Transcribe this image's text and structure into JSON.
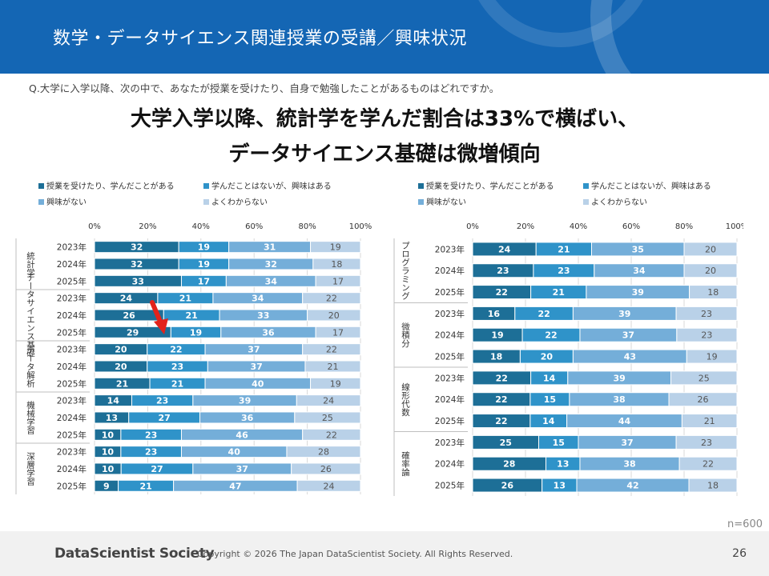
{
  "header": {
    "title": "数学・データサイエンス関連授業の受講／興味状況"
  },
  "question": "Q.大学に入学以降、次の中で、あなたが授業を受けたり、自身で勉強したことがあるものはどれですか。",
  "headline": [
    "大学入学以降、統計学を学んだ割合は33%で横ばい、",
    "データサイエンス基礎は微増傾向"
  ],
  "n_label": "n=600",
  "footer": {
    "brand": "DataScientist Society",
    "copyright": "Copyright © 2026  The Japan DataScientist Society. All Rights Reserved.",
    "page": "26"
  },
  "colors": {
    "header_bg": "#1466b4",
    "series": [
      "#1d6f97",
      "#2f93c9",
      "#74aed9",
      "#b9d1e8"
    ]
  },
  "chart_data": [
    {
      "type": "bar",
      "stacked": true,
      "orientation": "horizontal",
      "legend": [
        "授業を受けたり、学んだことがある",
        "学んだことはないが、興味はある",
        "興味がない",
        "よくわからない"
      ],
      "x_ticks": [
        "0%",
        "20%",
        "40%",
        "60%",
        "80%",
        "100%"
      ],
      "xlim": [
        0,
        100
      ],
      "groups": [
        {
          "label": "統計学",
          "rows": [
            {
              "year": "2023年",
              "values": [
                32,
                19,
                31,
                19
              ]
            },
            {
              "year": "2024年",
              "values": [
                32,
                19,
                32,
                18
              ]
            },
            {
              "year": "2025年",
              "values": [
                33,
                17,
                34,
                17
              ]
            }
          ]
        },
        {
          "label": "データサイエンス基礎",
          "rows": [
            {
              "year": "2023年",
              "values": [
                24,
                21,
                34,
                22
              ]
            },
            {
              "year": "2024年",
              "values": [
                26,
                21,
                33,
                20
              ]
            },
            {
              "year": "2025年",
              "values": [
                29,
                19,
                36,
                17
              ]
            }
          ]
        },
        {
          "label": "データ解析",
          "rows": [
            {
              "year": "2023年",
              "values": [
                20,
                22,
                37,
                22
              ]
            },
            {
              "year": "2024年",
              "values": [
                20,
                23,
                37,
                21
              ]
            },
            {
              "year": "2025年",
              "values": [
                21,
                21,
                40,
                19
              ]
            }
          ]
        },
        {
          "label": "機械学習",
          "rows": [
            {
              "year": "2023年",
              "values": [
                14,
                23,
                39,
                24
              ]
            },
            {
              "year": "2024年",
              "values": [
                13,
                27,
                36,
                25
              ]
            },
            {
              "year": "2025年",
              "values": [
                10,
                23,
                46,
                22
              ]
            }
          ]
        },
        {
          "label": "深層学習",
          "rows": [
            {
              "year": "2023年",
              "values": [
                10,
                23,
                40,
                28
              ]
            },
            {
              "year": "2024年",
              "values": [
                10,
                27,
                37,
                26
              ]
            },
            {
              "year": "2025年",
              "values": [
                9,
                21,
                47,
                24
              ]
            }
          ]
        }
      ]
    },
    {
      "type": "bar",
      "stacked": true,
      "orientation": "horizontal",
      "legend": [
        "授業を受けたり、学んだことがある",
        "学んだことはないが、興味はある",
        "興味がない",
        "よくわからない"
      ],
      "x_ticks": [
        "0%",
        "20%",
        "40%",
        "60%",
        "80%",
        "100%"
      ],
      "xlim": [
        0,
        100
      ],
      "groups": [
        {
          "label": "プログラミング",
          "rows": [
            {
              "year": "2023年",
              "values": [
                24,
                21,
                35,
                20
              ]
            },
            {
              "year": "2024年",
              "values": [
                23,
                23,
                34,
                20
              ]
            },
            {
              "year": "2025年",
              "values": [
                22,
                21,
                39,
                18
              ]
            }
          ]
        },
        {
          "label": "微積分",
          "rows": [
            {
              "year": "2023年",
              "values": [
                16,
                22,
                39,
                23
              ]
            },
            {
              "year": "2024年",
              "values": [
                19,
                22,
                37,
                23
              ]
            },
            {
              "year": "2025年",
              "values": [
                18,
                20,
                43,
                19
              ]
            }
          ]
        },
        {
          "label": "線形代数",
          "rows": [
            {
              "year": "2023年",
              "values": [
                22,
                14,
                39,
                25
              ]
            },
            {
              "year": "2024年",
              "values": [
                22,
                15,
                38,
                26
              ]
            },
            {
              "year": "2025年",
              "values": [
                22,
                14,
                44,
                21
              ]
            }
          ]
        },
        {
          "label": "確率論",
          "rows": [
            {
              "year": "2023年",
              "values": [
                25,
                15,
                37,
                23
              ]
            },
            {
              "year": "2024年",
              "values": [
                28,
                13,
                38,
                22
              ]
            },
            {
              "year": "2025年",
              "values": [
                26,
                13,
                42,
                18
              ]
            }
          ]
        }
      ]
    }
  ]
}
